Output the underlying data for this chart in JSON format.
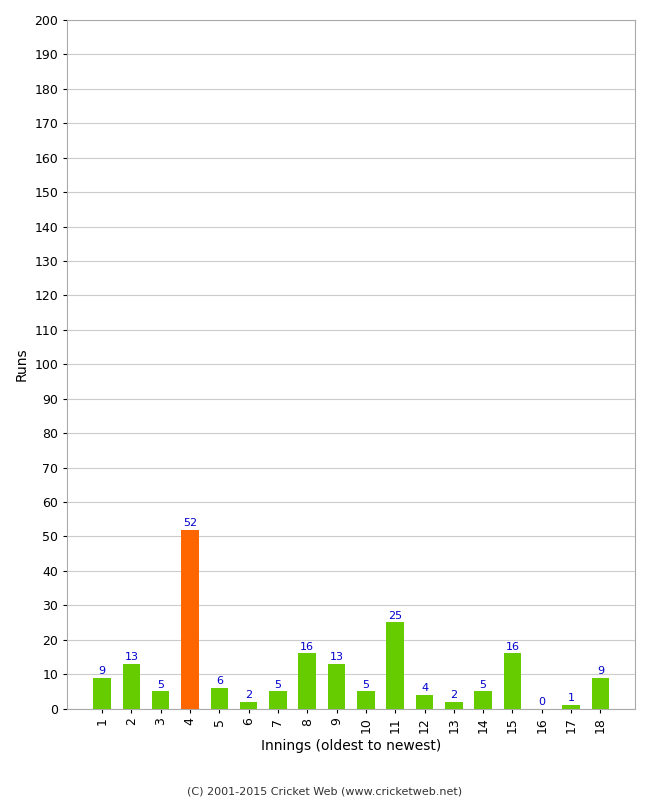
{
  "innings": [
    1,
    2,
    3,
    4,
    5,
    6,
    7,
    8,
    9,
    10,
    11,
    12,
    13,
    14,
    15,
    16,
    17,
    18
  ],
  "values": [
    9,
    13,
    5,
    52,
    6,
    2,
    5,
    16,
    13,
    5,
    25,
    4,
    2,
    5,
    16,
    0,
    1,
    9
  ],
  "bar_colors": [
    "#66cc00",
    "#66cc00",
    "#66cc00",
    "#ff6600",
    "#66cc00",
    "#66cc00",
    "#66cc00",
    "#66cc00",
    "#66cc00",
    "#66cc00",
    "#66cc00",
    "#66cc00",
    "#66cc00",
    "#66cc00",
    "#66cc00",
    "#66cc00",
    "#66cc00",
    "#66cc00"
  ],
  "xlabel": "Innings (oldest to newest)",
  "ylabel": "Runs",
  "ylim": [
    0,
    200
  ],
  "yticks": [
    0,
    10,
    20,
    30,
    40,
    50,
    60,
    70,
    80,
    90,
    100,
    110,
    120,
    130,
    140,
    150,
    160,
    170,
    180,
    190,
    200
  ],
  "label_color": "#0000cc",
  "footer": "(C) 2001-2015 Cricket Web (www.cricketweb.net)",
  "background_color": "#ffffff",
  "grid_color": "#cccccc",
  "spine_color": "#aaaaaa",
  "label_fontsize": 8,
  "tick_fontsize": 9,
  "bar_width": 0.6
}
